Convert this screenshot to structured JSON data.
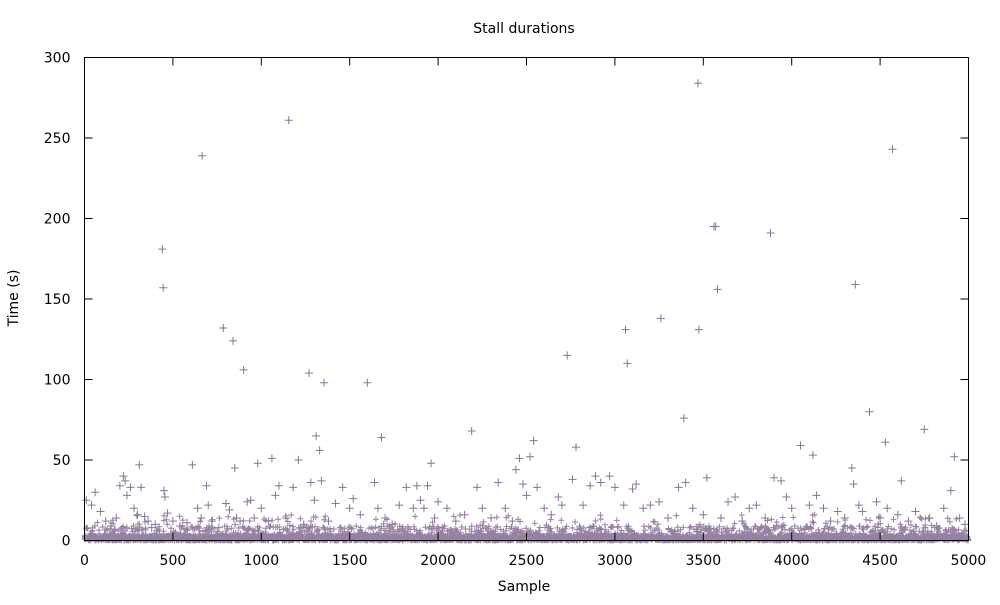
{
  "chart_data": {
    "type": "scatter",
    "title": "Stall durations",
    "xlabel": "Sample",
    "ylabel": "Time (s)",
    "xlim": [
      0,
      5000
    ],
    "ylim": [
      0,
      300
    ],
    "x_ticks": [
      "0",
      "500",
      "1000",
      "1500",
      "2000",
      "2500",
      "3000",
      "3500",
      "4000",
      "4500",
      "5000"
    ],
    "y_ticks": [
      "0",
      "50",
      "100",
      "150",
      "200",
      "250",
      "300"
    ],
    "grid": false,
    "marker": "+",
    "color": "#8c7399",
    "series": [
      {
        "points": [
          [
            10,
            25
          ],
          [
            40,
            22
          ],
          [
            60,
            30
          ],
          [
            90,
            18
          ],
          [
            120,
            12
          ],
          [
            150,
            9
          ],
          [
            180,
            14
          ],
          [
            200,
            34
          ],
          [
            220,
            40
          ],
          [
            230,
            37
          ],
          [
            240,
            28
          ],
          [
            260,
            33
          ],
          [
            280,
            20
          ],
          [
            300,
            16
          ],
          [
            310,
            47
          ],
          [
            320,
            33
          ],
          [
            340,
            15
          ],
          [
            360,
            12
          ],
          [
            380,
            8
          ],
          [
            400,
            10
          ],
          [
            440,
            181
          ],
          [
            445,
            157
          ],
          [
            450,
            31
          ],
          [
            455,
            27
          ],
          [
            470,
            17
          ],
          [
            500,
            12
          ],
          [
            540,
            9
          ],
          [
            580,
            11
          ],
          [
            610,
            47
          ],
          [
            640,
            20
          ],
          [
            660,
            14
          ],
          [
            665,
            239
          ],
          [
            690,
            34
          ],
          [
            700,
            22
          ],
          [
            720,
            12
          ],
          [
            760,
            8
          ],
          [
            785,
            132
          ],
          [
            800,
            23
          ],
          [
            820,
            19
          ],
          [
            840,
            124
          ],
          [
            850,
            45
          ],
          [
            860,
            14
          ],
          [
            880,
            12
          ],
          [
            900,
            106
          ],
          [
            920,
            24
          ],
          [
            940,
            25
          ],
          [
            960,
            14
          ],
          [
            980,
            48
          ],
          [
            1000,
            20
          ],
          [
            1040,
            12
          ],
          [
            1060,
            51
          ],
          [
            1080,
            28
          ],
          [
            1100,
            34
          ],
          [
            1140,
            14
          ],
          [
            1155,
            261
          ],
          [
            1180,
            33
          ],
          [
            1210,
            50
          ],
          [
            1240,
            10
          ],
          [
            1270,
            104
          ],
          [
            1280,
            36
          ],
          [
            1300,
            25
          ],
          [
            1310,
            65
          ],
          [
            1330,
            56
          ],
          [
            1340,
            37
          ],
          [
            1355,
            98
          ],
          [
            1380,
            12
          ],
          [
            1420,
            23
          ],
          [
            1460,
            33
          ],
          [
            1500,
            20
          ],
          [
            1520,
            26
          ],
          [
            1560,
            16
          ],
          [
            1600,
            98
          ],
          [
            1640,
            36
          ],
          [
            1660,
            20
          ],
          [
            1680,
            64
          ],
          [
            1700,
            14
          ],
          [
            1740,
            10
          ],
          [
            1780,
            22
          ],
          [
            1820,
            33
          ],
          [
            1860,
            20
          ],
          [
            1880,
            34
          ],
          [
            1900,
            25
          ],
          [
            1920,
            20
          ],
          [
            1940,
            34
          ],
          [
            1960,
            48
          ],
          [
            1980,
            14
          ],
          [
            2000,
            24
          ],
          [
            2050,
            20
          ],
          [
            2100,
            12
          ],
          [
            2150,
            16
          ],
          [
            2190,
            68
          ],
          [
            2220,
            33
          ],
          [
            2250,
            20
          ],
          [
            2300,
            14
          ],
          [
            2340,
            36
          ],
          [
            2380,
            20
          ],
          [
            2420,
            12
          ],
          [
            2440,
            44
          ],
          [
            2460,
            51
          ],
          [
            2480,
            35
          ],
          [
            2500,
            28
          ],
          [
            2520,
            52
          ],
          [
            2540,
            62
          ],
          [
            2560,
            33
          ],
          [
            2600,
            20
          ],
          [
            2640,
            16
          ],
          [
            2680,
            27
          ],
          [
            2700,
            22
          ],
          [
            2730,
            115
          ],
          [
            2760,
            38
          ],
          [
            2780,
            58
          ],
          [
            2820,
            22
          ],
          [
            2860,
            34
          ],
          [
            2890,
            40
          ],
          [
            2920,
            36
          ],
          [
            2970,
            40
          ],
          [
            3000,
            33
          ],
          [
            3050,
            22
          ],
          [
            3060,
            131
          ],
          [
            3070,
            110
          ],
          [
            3100,
            32
          ],
          [
            3120,
            35
          ],
          [
            3160,
            20
          ],
          [
            3200,
            22
          ],
          [
            3250,
            24
          ],
          [
            3260,
            138
          ],
          [
            3300,
            14
          ],
          [
            3360,
            33
          ],
          [
            3390,
            76
          ],
          [
            3400,
            36
          ],
          [
            3440,
            20
          ],
          [
            3470,
            284
          ],
          [
            3475,
            131
          ],
          [
            3500,
            16
          ],
          [
            3520,
            39
          ],
          [
            3560,
            195
          ],
          [
            3570,
            195
          ],
          [
            3580,
            156
          ],
          [
            3600,
            14
          ],
          [
            3640,
            24
          ],
          [
            3680,
            27
          ],
          [
            3720,
            12
          ],
          [
            3760,
            20
          ],
          [
            3800,
            22
          ],
          [
            3850,
            14
          ],
          [
            3880,
            191
          ],
          [
            3900,
            39
          ],
          [
            3940,
            37
          ],
          [
            3970,
            27
          ],
          [
            4000,
            20
          ],
          [
            4050,
            59
          ],
          [
            4100,
            22
          ],
          [
            4120,
            53
          ],
          [
            4140,
            28
          ],
          [
            4180,
            20
          ],
          [
            4220,
            12
          ],
          [
            4260,
            18
          ],
          [
            4300,
            14
          ],
          [
            4340,
            45
          ],
          [
            4350,
            35
          ],
          [
            4360,
            159
          ],
          [
            4380,
            22
          ],
          [
            4400,
            18
          ],
          [
            4440,
            80
          ],
          [
            4480,
            24
          ],
          [
            4500,
            14
          ],
          [
            4530,
            61
          ],
          [
            4540,
            20
          ],
          [
            4570,
            243
          ],
          [
            4600,
            16
          ],
          [
            4620,
            37
          ],
          [
            4660,
            12
          ],
          [
            4700,
            18
          ],
          [
            4750,
            69
          ],
          [
            4780,
            14
          ],
          [
            4820,
            9
          ],
          [
            4860,
            20
          ],
          [
            4900,
            31
          ],
          [
            4920,
            52
          ],
          [
            4950,
            14
          ],
          [
            4980,
            10
          ]
        ]
      }
    ]
  }
}
